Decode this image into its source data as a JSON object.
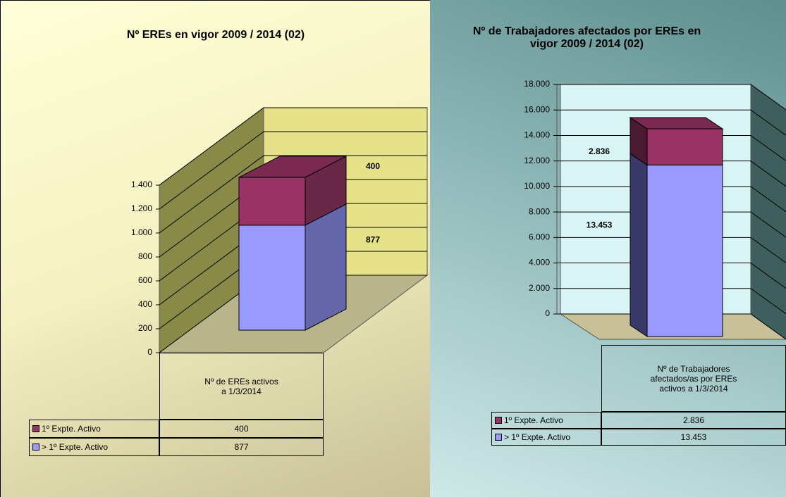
{
  "chart_data": [
    {
      "type": "bar",
      "stacked": true,
      "title": "Nº EREs en vigor 2009 / 2014 (02)",
      "categories": [
        "Nº de EREs activos a 1/3/2014"
      ],
      "series": [
        {
          "name": "1º Expte. Activo",
          "color": "#993366",
          "values": [
            400
          ]
        },
        {
          "name": "> 1º Expte. Activo",
          "color": "#9999ff",
          "values": [
            877
          ]
        }
      ],
      "ylim": [
        0,
        1400
      ],
      "yticks": [
        0,
        200,
        400,
        600,
        800,
        {
          "value": 1000,
          "label": "1.000"
        },
        {
          "value": 1200,
          "label": "1.200"
        },
        {
          "value": 1400,
          "label": "1.400"
        }
      ],
      "grid": true
    },
    {
      "type": "bar",
      "stacked": true,
      "title": "Nº de Trabajadores afectados por EREs en vigor 2009 / 2014 (02)",
      "categories": [
        "Nº de Trabajadores afectados/as por EREs activos a 1/3/2014"
      ],
      "series": [
        {
          "name": "1º Expte. Activo",
          "color": "#993366",
          "values": [
            2836
          ],
          "value_labels": [
            "2.836"
          ]
        },
        {
          "name": "> 1º Expte. Activo",
          "color": "#9999ff",
          "values": [
            13453
          ],
          "value_labels": [
            "13.453"
          ]
        }
      ],
      "ylim": [
        0,
        18000
      ],
      "yticks": [
        0,
        {
          "value": 2000,
          "label": "2.000"
        },
        {
          "value": 4000,
          "label": "4.000"
        },
        {
          "value": 6000,
          "label": "6.000"
        },
        {
          "value": 8000,
          "label": "8.000"
        },
        {
          "value": 10000,
          "label": "10.000"
        },
        {
          "value": 12000,
          "label": "12.000"
        },
        {
          "value": 14000,
          "label": "14.000"
        },
        {
          "value": 16000,
          "label": "16.000"
        },
        {
          "value": 18000,
          "label": "18.000"
        }
      ],
      "grid": true
    }
  ]
}
